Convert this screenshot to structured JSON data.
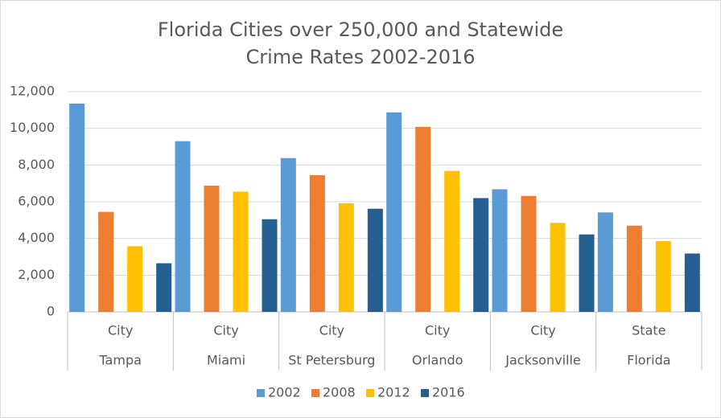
{
  "chart_data": {
    "type": "bar",
    "title": [
      "Florida Cities over 250,000 and Statewide",
      "Crime Rates 2002-2016"
    ],
    "categories": [
      "Tampa",
      "Miami",
      "St Petersburg",
      "Orlando",
      "Jacksonville",
      "Florida"
    ],
    "category_groups": [
      "City",
      "City",
      "City",
      "City",
      "City",
      "State"
    ],
    "series": [
      {
        "name": "2002",
        "color": "#5b9bd5",
        "values": [
          11350,
          9300,
          8380,
          10870,
          6680,
          5420
        ]
      },
      {
        "name": "2008",
        "color": "#ed7d31",
        "values": [
          5450,
          6880,
          7450,
          10080,
          6320,
          4700
        ]
      },
      {
        "name": "2012",
        "color": "#ffc000",
        "values": [
          3580,
          6550,
          5920,
          7680,
          4850,
          3850
        ]
      },
      {
        "name": "2016",
        "color": "#255e91",
        "values": [
          2650,
          5050,
          5620,
          6200,
          4220,
          3180
        ]
      }
    ],
    "ylim": [
      0,
      12000
    ],
    "yticks": [
      0,
      {
        "value": 2000,
        "label": "2,000"
      },
      {
        "value": 4000,
        "label": "4,000"
      },
      {
        "value": 6000,
        "label": "6,000"
      },
      {
        "value": 8000,
        "label": "8,000"
      },
      {
        "value": 10000,
        "label": "10,000"
      },
      {
        "value": 12000,
        "label": "12,000"
      }
    ],
    "grid": true,
    "legend": "bottom"
  }
}
